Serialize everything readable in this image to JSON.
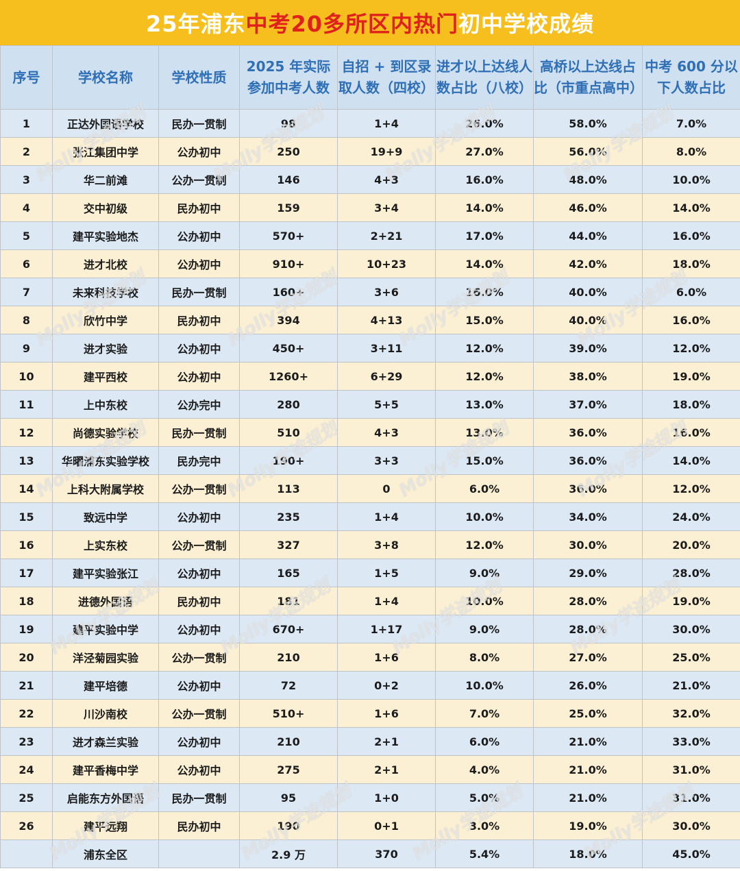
{
  "title": {
    "part1": "25年浦东",
    "part2": "中考20多所区内热门",
    "part3": "初中学校成绩"
  },
  "headers": [
    "序号",
    "学校名称",
    "学校性质",
    "2025 年实际参加中考人数",
    "自招 + 到区录取人数（四校）",
    "进才以上达线人数占比（八校）",
    "高桥以上达线占比（市重点高中）",
    "中考 600 分以下人数占比"
  ],
  "rows": [
    [
      "1",
      "正达外国语学校",
      "民办一贯制",
      "98",
      "1+4",
      "26.0%",
      "58.0%",
      "7.0%"
    ],
    [
      "2",
      "张江集团中学",
      "公办初中",
      "250",
      "19+9",
      "27.0%",
      "56.0%",
      "8.0%"
    ],
    [
      "3",
      "华二前滩",
      "公办一贯制",
      "146",
      "4+3",
      "16.0%",
      "48.0%",
      "10.0%"
    ],
    [
      "4",
      "交中初级",
      "民办初中",
      "159",
      "3+4",
      "14.0%",
      "46.0%",
      "14.0%"
    ],
    [
      "5",
      "建平实验地杰",
      "公办初中",
      "570+",
      "2+21",
      "17.0%",
      "44.0%",
      "16.0%"
    ],
    [
      "6",
      "进才北校",
      "公办初中",
      "910+",
      "10+23",
      "14.0%",
      "42.0%",
      "18.0%"
    ],
    [
      "7",
      "未来科技学校",
      "民办一贯制",
      "160+",
      "3+6",
      "16.0%",
      "40.0%",
      "6.0%"
    ],
    [
      "8",
      "欣竹中学",
      "民办初中",
      "394",
      "4+13",
      "15.0%",
      "40.0%",
      "16.0%"
    ],
    [
      "9",
      "进才实验",
      "公办初中",
      "450+",
      "3+11",
      "12.0%",
      "39.0%",
      "12.0%"
    ],
    [
      "10",
      "建平西校",
      "公办初中",
      "1260+",
      "6+29",
      "12.0%",
      "38.0%",
      "19.0%"
    ],
    [
      "11",
      "上中东校",
      "公办完中",
      "280",
      "5+5",
      "13.0%",
      "37.0%",
      "18.0%"
    ],
    [
      "12",
      "尚德实验学校",
      "民办一贯制",
      "510",
      "4+3",
      "13.0%",
      "36.0%",
      "16.0%"
    ],
    [
      "13",
      "华曜浦东实验学校",
      "民办完中",
      "190+",
      "3+3",
      "15.0%",
      "36.0%",
      "14.0%"
    ],
    [
      "14",
      "上科大附属学校",
      "公办一贯制",
      "113",
      "0",
      "6.0%",
      "36.0%",
      "12.0%"
    ],
    [
      "15",
      "致远中学",
      "公办初中",
      "235",
      "1+4",
      "10.0%",
      "34.0%",
      "24.0%"
    ],
    [
      "16",
      "上实东校",
      "公办一贯制",
      "327",
      "3+8",
      "12.0%",
      "30.0%",
      "20.0%"
    ],
    [
      "17",
      "建平实验张江",
      "公办初中",
      "165",
      "1+5",
      "9.0%",
      "29.0%",
      "28.0%"
    ],
    [
      "18",
      "进德外国语",
      "民办初中",
      "181",
      "1+4",
      "10.0%",
      "28.0%",
      "19.0%"
    ],
    [
      "19",
      "建平实验中学",
      "公办初中",
      "670+",
      "1+17",
      "9.0%",
      "28.0%",
      "30.0%"
    ],
    [
      "20",
      "洋泾菊园实验",
      "公办一贯制",
      "210",
      "1+6",
      "8.0%",
      "27.0%",
      "25.0%"
    ],
    [
      "21",
      "建平培德",
      "公办初中",
      "72",
      "0+2",
      "10.0%",
      "26.0%",
      "21.0%"
    ],
    [
      "22",
      "川沙南校",
      "公办一贯制",
      "510+",
      "1+6",
      "7.0%",
      "25.0%",
      "32.0%"
    ],
    [
      "23",
      "进才森兰实验",
      "公办初中",
      "210",
      "2+1",
      "6.0%",
      "21.0%",
      "33.0%"
    ],
    [
      "24",
      "建平香梅中学",
      "公办初中",
      "275",
      "2+1",
      "4.0%",
      "21.0%",
      "31.0%"
    ],
    [
      "25",
      "启能东方外国语",
      "民办一贯制",
      "95",
      "1+0",
      "5.0%",
      "21.0%",
      "31.0%"
    ],
    [
      "26",
      "建平远翔",
      "民办初中",
      "190",
      "0+1",
      "3.0%",
      "19.0%",
      "30.0%"
    ]
  ],
  "total": [
    "",
    "浦东全区",
    "",
    "2.9 万",
    "370",
    "5.4%",
    "18.0%",
    "45.0%"
  ],
  "watermark": "Molly学途规划",
  "colors": {
    "title_bg": "#f7bf1e",
    "title_highlight": "#e0201b",
    "header_bg": "#cfe0f0",
    "header_text": "#2f6fb6",
    "row_blue": "#dce9f5",
    "row_cream": "#fbf0d3"
  }
}
